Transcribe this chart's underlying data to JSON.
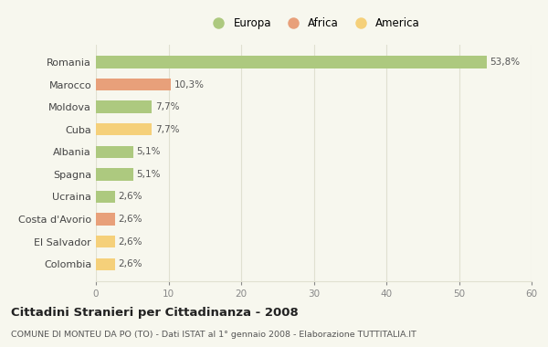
{
  "countries": [
    "Romania",
    "Marocco",
    "Moldova",
    "Cuba",
    "Albania",
    "Spagna",
    "Ucraina",
    "Costa d'Avorio",
    "El Salvador",
    "Colombia"
  ],
  "values": [
    53.8,
    10.3,
    7.7,
    7.7,
    5.1,
    5.1,
    2.6,
    2.6,
    2.6,
    2.6
  ],
  "labels": [
    "53,8%",
    "10,3%",
    "7,7%",
    "7,7%",
    "5,1%",
    "5,1%",
    "2,6%",
    "2,6%",
    "2,6%",
    "2,6%"
  ],
  "colors": [
    "#adc97f",
    "#e8a07a",
    "#adc97f",
    "#f5d07a",
    "#adc97f",
    "#adc97f",
    "#adc97f",
    "#e8a07a",
    "#f5d07a",
    "#f5d07a"
  ],
  "legend_labels": [
    "Europa",
    "Africa",
    "America"
  ],
  "legend_colors": [
    "#adc97f",
    "#e8a07a",
    "#f5d07a"
  ],
  "title": "Cittadini Stranieri per Cittadinanza - 2008",
  "subtitle": "COMUNE DI MONTEU DA PO (TO) - Dati ISTAT al 1° gennaio 2008 - Elaborazione TUTTITALIA.IT",
  "xlim": [
    0,
    60
  ],
  "xticks": [
    0,
    10,
    20,
    30,
    40,
    50,
    60
  ],
  "bg_color": "#f7f7ee",
  "grid_color": "#e0e0d0",
  "bar_height": 0.55
}
